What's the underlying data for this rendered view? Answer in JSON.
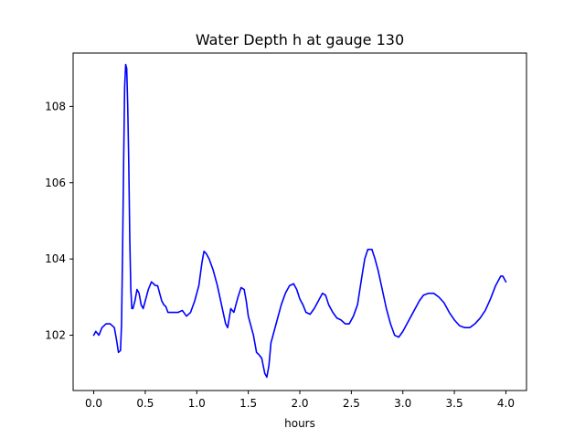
{
  "chart_data": {
    "type": "line",
    "title": "Water Depth h at gauge 130",
    "xlabel": "hours",
    "ylabel": "",
    "xlim": [
      -0.2,
      4.2
    ],
    "ylim": [
      100.55,
      109.4
    ],
    "xticks": [
      0.0,
      0.5,
      1.0,
      1.5,
      2.0,
      2.5,
      3.0,
      3.5,
      4.0
    ],
    "xtick_labels": [
      "0.0",
      "0.5",
      "1.0",
      "1.5",
      "2.0",
      "2.5",
      "3.0",
      "3.5",
      "4.0"
    ],
    "yticks": [
      102,
      104,
      106,
      108
    ],
    "ytick_labels": [
      "102",
      "104",
      "106",
      "108"
    ],
    "grid": false,
    "series": [
      {
        "color": "#0000ff",
        "x": [
          0.0,
          0.02,
          0.05,
          0.08,
          0.12,
          0.16,
          0.2,
          0.22,
          0.24,
          0.26,
          0.27,
          0.28,
          0.29,
          0.3,
          0.31,
          0.32,
          0.33,
          0.34,
          0.35,
          0.36,
          0.37,
          0.38,
          0.39,
          0.4,
          0.42,
          0.44,
          0.46,
          0.48,
          0.5,
          0.53,
          0.56,
          0.58,
          0.6,
          0.62,
          0.64,
          0.66,
          0.68,
          0.7,
          0.72,
          0.75,
          0.78,
          0.82,
          0.86,
          0.9,
          0.94,
          0.98,
          1.02,
          1.05,
          1.07,
          1.09,
          1.12,
          1.16,
          1.2,
          1.24,
          1.28,
          1.3,
          1.33,
          1.36,
          1.4,
          1.43,
          1.46,
          1.48,
          1.5,
          1.52,
          1.55,
          1.58,
          1.6,
          1.63,
          1.66,
          1.68,
          1.7,
          1.72,
          1.75,
          1.78,
          1.82,
          1.86,
          1.9,
          1.94,
          1.97,
          2.0,
          2.03,
          2.06,
          2.1,
          2.14,
          2.18,
          2.22,
          2.25,
          2.28,
          2.32,
          2.36,
          2.4,
          2.44,
          2.48,
          2.52,
          2.56,
          2.6,
          2.63,
          2.66,
          2.7,
          2.73,
          2.76,
          2.8,
          2.84,
          2.88,
          2.92,
          2.96,
          3.0,
          3.04,
          3.08,
          3.12,
          3.16,
          3.2,
          3.25,
          3.3,
          3.35,
          3.4,
          3.45,
          3.5,
          3.55,
          3.6,
          3.65,
          3.7,
          3.75,
          3.8,
          3.85,
          3.9,
          3.93,
          3.95,
          3.97,
          4.0
        ],
        "y": [
          102.0,
          102.1,
          102.0,
          102.2,
          102.3,
          102.3,
          102.2,
          101.9,
          101.55,
          101.6,
          102.3,
          104.2,
          106.5,
          108.5,
          109.1,
          109.0,
          108.0,
          106.5,
          104.5,
          103.2,
          102.7,
          102.7,
          102.8,
          102.9,
          103.2,
          103.1,
          102.8,
          102.7,
          102.9,
          103.2,
          103.4,
          103.35,
          103.3,
          103.3,
          103.1,
          102.9,
          102.8,
          102.75,
          102.6,
          102.6,
          102.6,
          102.6,
          102.65,
          102.5,
          102.6,
          102.9,
          103.3,
          103.9,
          104.2,
          104.15,
          104.0,
          103.7,
          103.3,
          102.8,
          102.3,
          102.2,
          102.7,
          102.6,
          103.0,
          103.25,
          103.2,
          102.9,
          102.5,
          102.3,
          102.0,
          101.55,
          101.5,
          101.4,
          101.0,
          100.9,
          101.2,
          101.8,
          102.1,
          102.4,
          102.8,
          103.1,
          103.3,
          103.35,
          103.2,
          102.95,
          102.8,
          102.6,
          102.55,
          102.7,
          102.9,
          103.1,
          103.05,
          102.8,
          102.6,
          102.45,
          102.4,
          102.3,
          102.3,
          102.5,
          102.8,
          103.5,
          104.0,
          104.25,
          104.25,
          104.0,
          103.7,
          103.2,
          102.7,
          102.3,
          102.0,
          101.95,
          102.1,
          102.3,
          102.5,
          102.7,
          102.9,
          103.05,
          103.1,
          103.1,
          103.0,
          102.85,
          102.6,
          102.4,
          102.25,
          102.2,
          102.2,
          102.3,
          102.45,
          102.65,
          102.95,
          103.3,
          103.45,
          103.55,
          103.55,
          103.4
        ]
      }
    ]
  }
}
